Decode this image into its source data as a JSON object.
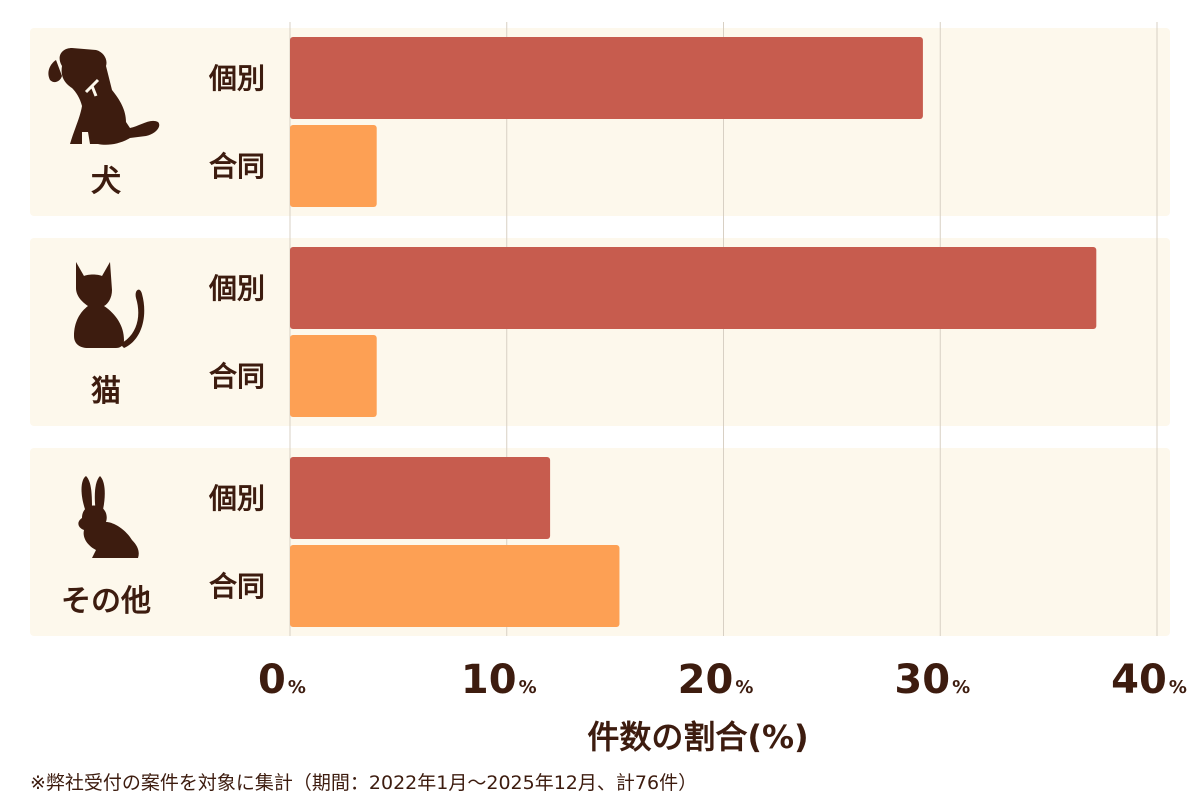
{
  "chart_data": {
    "type": "bar",
    "orientation": "horizontal",
    "groups": [
      {
        "name": "犬",
        "icon": "dog-icon",
        "bars": [
          {
            "label": "個別",
            "value": 29.2
          },
          {
            "label": "合同",
            "value": 4.0
          }
        ]
      },
      {
        "name": "猫",
        "icon": "cat-icon",
        "bars": [
          {
            "label": "個別",
            "value": 37.2
          },
          {
            "label": "合同",
            "value": 4.0
          }
        ]
      },
      {
        "name": "その他",
        "icon": "rabbit-icon",
        "bars": [
          {
            "label": "個別",
            "value": 12.0
          },
          {
            "label": "合同",
            "value": 15.2
          }
        ]
      }
    ],
    "xlim": [
      0,
      40
    ],
    "xticks": [
      {
        "value": 0,
        "num": "0",
        "unit": "%"
      },
      {
        "value": 10,
        "num": "10",
        "unit": "%"
      },
      {
        "value": 20,
        "num": "20",
        "unit": "%"
      },
      {
        "value": 30,
        "num": "30",
        "unit": "%"
      },
      {
        "value": 40,
        "num": "40",
        "unit": "%"
      }
    ],
    "xlabel": "件数の割合(%)",
    "grid": true,
    "colors": {
      "個別": "#c75c4e",
      "合同": "#fda054",
      "panel": "#fdf8ec",
      "text": "#3d1c0f",
      "grid": "#d8d0c4"
    }
  },
  "footnote": "※弊社受付の案件を対象に集計（期間：2022年1月〜2025年12月、計76件）"
}
